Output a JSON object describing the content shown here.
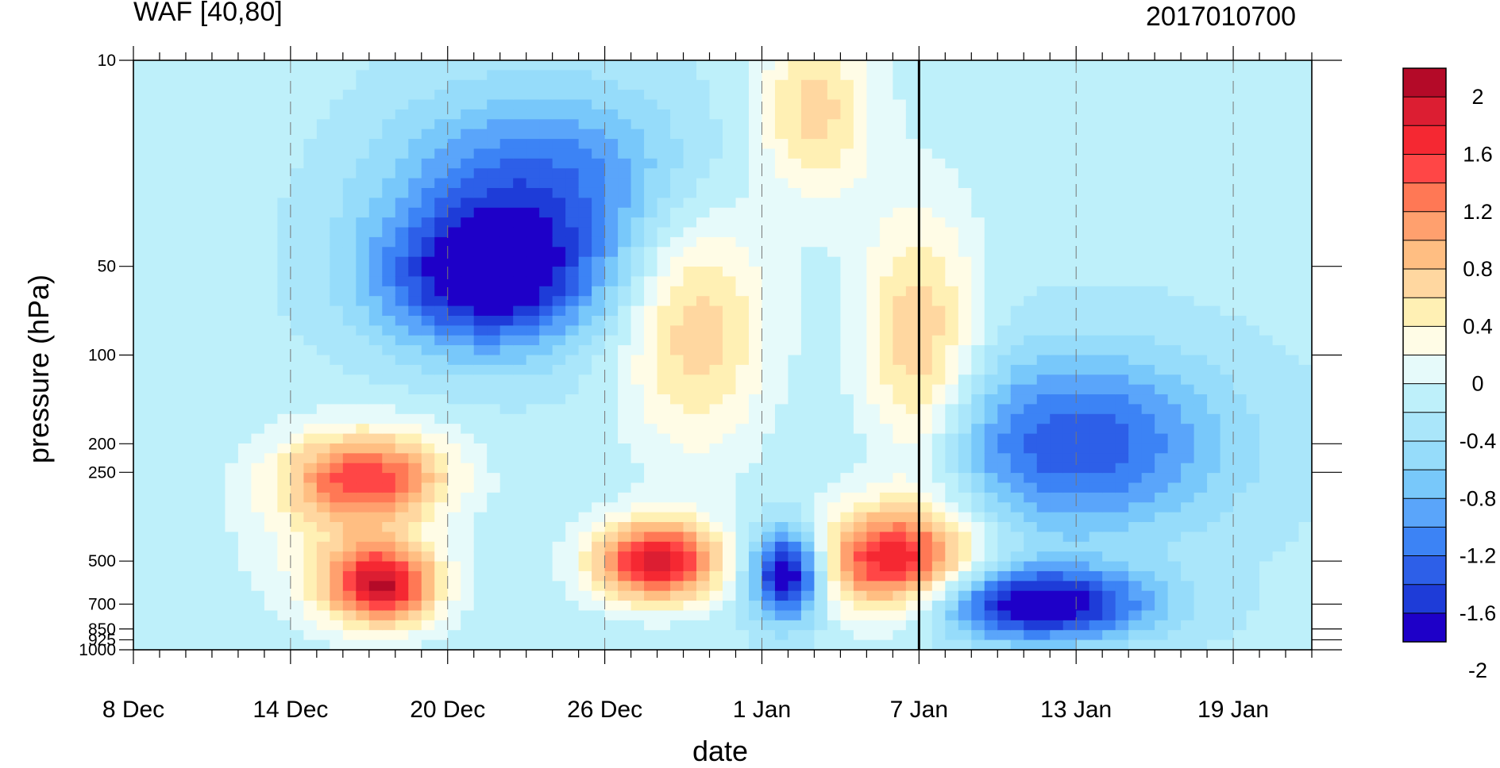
{
  "chart_data": {
    "type": "heatmap",
    "title_left": "WAF [40,80]",
    "title_right": "2017010700",
    "xlabel": "date",
    "ylabel": "pressure (hPa)",
    "x_ticks": [
      "8 Dec",
      "14 Dec",
      "20 Dec",
      "26 Dec",
      "1 Jan",
      "7 Jan",
      "13 Jan",
      "19 Jan"
    ],
    "x_days_range": [
      0,
      45
    ],
    "y_ticks": [
      10,
      50,
      100,
      200,
      250,
      500,
      700,
      850,
      925,
      1000
    ],
    "y_range": [
      1000,
      10
    ],
    "y_scale": "log",
    "grid": "dashed verticals at date labels",
    "reference_line": "7 Jan",
    "colorbar_labels": [
      "2",
      "1.6",
      "1.2",
      "0.8",
      "0.4",
      "0",
      "-0.4",
      "-0.8",
      "-1.2",
      "-1.6",
      "-2"
    ],
    "levels": [
      -2.2,
      -2.0,
      -1.8,
      -1.6,
      -1.4,
      -1.2,
      -1.0,
      -0.8,
      -0.6,
      -0.4,
      -0.2,
      0,
      0.2,
      0.4,
      0.6,
      0.8,
      1.0,
      1.2,
      1.4,
      1.6,
      1.8,
      2.0,
      2.2
    ],
    "colors": [
      "#1e00c8",
      "#1e3cd8",
      "#2d5fe8",
      "#3c83f5",
      "#5aa5fa",
      "#78c8fa",
      "#96dcfa",
      "#aae6fa",
      "#bef0fa",
      "#e6fafa",
      "#fffce6",
      "#fff0b4",
      "#ffd7a0",
      "#ffbe82",
      "#ffa06e",
      "#ff7855",
      "#ff4646",
      "#f52832",
      "#dc1e32",
      "#b40a28"
    ],
    "features": [
      {
        "day": 2.5,
        "p": 10,
        "value": 0.15,
        "spread_days": 3.0,
        "spread_logp": 0.6
      },
      {
        "day": 9.5,
        "p": 600,
        "value": 2.0,
        "spread_days": 1.5,
        "spread_logp": 0.22
      },
      {
        "day": 9.0,
        "p": 260,
        "value": 1.5,
        "spread_days": 2.2,
        "spread_logp": 0.25
      },
      {
        "day": 13.5,
        "p": 55,
        "value": -1.7,
        "spread_days": 3.0,
        "spread_logp": 0.4
      },
      {
        "day": 15.5,
        "p": 25,
        "value": -1.0,
        "spread_days": 4.0,
        "spread_logp": 0.5
      },
      {
        "day": 20.0,
        "p": 500,
        "value": 2.1,
        "spread_days": 1.7,
        "spread_logp": 0.22
      },
      {
        "day": 21.5,
        "p": 80,
        "value": 0.9,
        "spread_days": 2.0,
        "spread_logp": 0.7
      },
      {
        "day": 26.0,
        "p": 15,
        "value": 0.85,
        "spread_days": 1.6,
        "spread_logp": 0.5
      },
      {
        "day": 25.0,
        "p": 550,
        "value": -2.0,
        "spread_days": 1.0,
        "spread_logp": 0.25
      },
      {
        "day": 29.0,
        "p": 500,
        "value": 1.9,
        "spread_days": 2.2,
        "spread_logp": 0.3
      },
      {
        "day": 30.0,
        "p": 100,
        "value": 1.0,
        "spread_days": 1.6,
        "spread_logp": 0.8
      },
      {
        "day": 34.5,
        "p": 700,
        "value": -1.8,
        "spread_days": 3.0,
        "spread_logp": 0.2
      },
      {
        "day": 36.0,
        "p": 200,
        "value": -1.2,
        "spread_days": 4.0,
        "spread_logp": 0.5
      },
      {
        "day": 7.5,
        "p": 400,
        "value": 0.4,
        "spread_days": 2.5,
        "spread_logp": 0.5
      }
    ]
  }
}
